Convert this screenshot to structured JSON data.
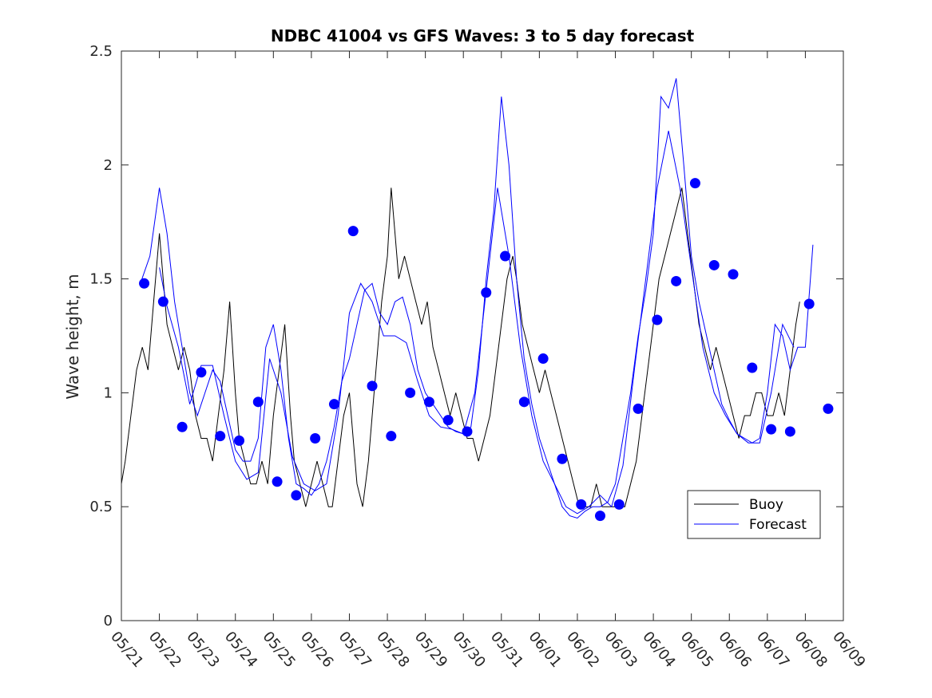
{
  "chart_data": {
    "type": "line",
    "title": "NDBC 41004 vs GFS Waves: 3 to 5 day forecast",
    "xlabel": "",
    "ylabel": "Wave height, m",
    "ylim": [
      0,
      2.5
    ],
    "xlim": [
      "05/21",
      "06/09"
    ],
    "x_tick_labels": [
      "05/21",
      "05/22",
      "05/23",
      "05/24",
      "05/25",
      "05/26",
      "05/27",
      "05/28",
      "05/29",
      "05/30",
      "05/31",
      "06/01",
      "06/02",
      "06/03",
      "06/04",
      "06/05",
      "06/06",
      "06/07",
      "06/08",
      "06/09"
    ],
    "y_tick_labels": [
      "0",
      "0.5",
      "1",
      "1.5",
      "2",
      "2.5"
    ],
    "y_ticks": [
      0,
      0.5,
      1,
      1.5,
      2,
      2.5
    ],
    "grid": false,
    "legend": {
      "placement": "lower-right",
      "entries": [
        {
          "label": "Buoy",
          "color": "#000000"
        },
        {
          "label": "Forecast",
          "color": "#0000ff"
        }
      ]
    },
    "series": [
      {
        "name": "Buoy",
        "kind": "line",
        "color": "#000000",
        "points": [
          [
            0.0,
            0.6
          ],
          [
            0.1,
            0.7
          ],
          [
            0.25,
            0.9
          ],
          [
            0.4,
            1.1
          ],
          [
            0.55,
            1.2
          ],
          [
            0.7,
            1.1
          ],
          [
            0.85,
            1.4
          ],
          [
            1.0,
            1.7
          ],
          [
            1.1,
            1.5
          ],
          [
            1.2,
            1.3
          ],
          [
            1.35,
            1.2
          ],
          [
            1.5,
            1.1
          ],
          [
            1.65,
            1.2
          ],
          [
            1.8,
            1.1
          ],
          [
            1.95,
            0.9
          ],
          [
            2.1,
            0.8
          ],
          [
            2.25,
            0.8
          ],
          [
            2.4,
            0.7
          ],
          [
            2.55,
            0.9
          ],
          [
            2.7,
            1.1
          ],
          [
            2.85,
            1.4
          ],
          [
            3.0,
            1.0
          ],
          [
            3.1,
            0.8
          ],
          [
            3.25,
            0.7
          ],
          [
            3.4,
            0.6
          ],
          [
            3.55,
            0.6
          ],
          [
            3.7,
            0.7
          ],
          [
            3.85,
            0.6
          ],
          [
            4.0,
            0.9
          ],
          [
            4.15,
            1.1
          ],
          [
            4.3,
            1.3
          ],
          [
            4.45,
            0.9
          ],
          [
            4.55,
            0.7
          ],
          [
            4.7,
            0.6
          ],
          [
            4.85,
            0.5
          ],
          [
            5.0,
            0.6
          ],
          [
            5.15,
            0.7
          ],
          [
            5.3,
            0.6
          ],
          [
            5.45,
            0.5
          ],
          [
            5.55,
            0.5
          ],
          [
            5.7,
            0.7
          ],
          [
            5.85,
            0.9
          ],
          [
            6.0,
            1.0
          ],
          [
            6.1,
            0.8
          ],
          [
            6.2,
            0.6
          ],
          [
            6.35,
            0.5
          ],
          [
            6.5,
            0.7
          ],
          [
            6.65,
            1.0
          ],
          [
            6.85,
            1.4
          ],
          [
            7.0,
            1.6
          ],
          [
            7.1,
            1.9
          ],
          [
            7.2,
            1.7
          ],
          [
            7.3,
            1.5
          ],
          [
            7.45,
            1.6
          ],
          [
            7.6,
            1.5
          ],
          [
            7.75,
            1.4
          ],
          [
            7.9,
            1.3
          ],
          [
            8.05,
            1.4
          ],
          [
            8.2,
            1.2
          ],
          [
            8.35,
            1.1
          ],
          [
            8.5,
            1.0
          ],
          [
            8.65,
            0.9
          ],
          [
            8.8,
            1.0
          ],
          [
            8.95,
            0.9
          ],
          [
            9.1,
            0.8
          ],
          [
            9.25,
            0.8
          ],
          [
            9.4,
            0.7
          ],
          [
            9.55,
            0.8
          ],
          [
            9.7,
            0.9
          ],
          [
            9.85,
            1.1
          ],
          [
            10.0,
            1.3
          ],
          [
            10.15,
            1.5
          ],
          [
            10.3,
            1.6
          ],
          [
            10.4,
            1.5
          ],
          [
            10.55,
            1.3
          ],
          [
            10.7,
            1.2
          ],
          [
            10.85,
            1.1
          ],
          [
            11.0,
            1.0
          ],
          [
            11.15,
            1.1
          ],
          [
            11.3,
            1.0
          ],
          [
            11.45,
            0.9
          ],
          [
            11.6,
            0.8
          ],
          [
            11.75,
            0.7
          ],
          [
            11.9,
            0.6
          ],
          [
            12.05,
            0.5
          ],
          [
            12.2,
            0.5
          ],
          [
            12.35,
            0.5
          ],
          [
            12.5,
            0.6
          ],
          [
            12.65,
            0.5
          ],
          [
            12.8,
            0.5
          ],
          [
            12.95,
            0.5
          ],
          [
            13.1,
            0.5
          ],
          [
            13.25,
            0.5
          ],
          [
            13.4,
            0.6
          ],
          [
            13.55,
            0.7
          ],
          [
            13.7,
            0.9
          ],
          [
            13.85,
            1.1
          ],
          [
            14.0,
            1.3
          ],
          [
            14.15,
            1.5
          ],
          [
            14.3,
            1.6
          ],
          [
            14.45,
            1.7
          ],
          [
            14.6,
            1.8
          ],
          [
            14.75,
            1.9
          ],
          [
            14.9,
            1.7
          ],
          [
            15.05,
            1.5
          ],
          [
            15.2,
            1.3
          ],
          [
            15.35,
            1.2
          ],
          [
            15.5,
            1.1
          ],
          [
            15.65,
            1.2
          ],
          [
            15.8,
            1.1
          ],
          [
            15.95,
            1.0
          ],
          [
            16.1,
            0.9
          ],
          [
            16.25,
            0.8
          ],
          [
            16.4,
            0.9
          ],
          [
            16.55,
            0.9
          ],
          [
            16.7,
            1.0
          ],
          [
            16.85,
            1.0
          ],
          [
            17.0,
            0.9
          ],
          [
            17.15,
            0.9
          ],
          [
            17.3,
            1.0
          ],
          [
            17.45,
            0.9
          ],
          [
            17.6,
            1.1
          ],
          [
            17.75,
            1.3
          ],
          [
            17.85,
            1.4
          ]
        ]
      },
      {
        "name": "Forecast",
        "kind": "line",
        "color": "#0000ff",
        "points": [
          [
            0.5,
            1.48
          ],
          [
            0.75,
            1.6
          ],
          [
            1.0,
            1.9
          ],
          [
            1.2,
            1.7
          ],
          [
            1.4,
            1.4
          ],
          [
            1.6,
            1.2
          ],
          [
            1.8,
            1.0
          ],
          [
            2.0,
            0.9
          ],
          [
            2.2,
            1.0
          ],
          [
            2.4,
            1.1
          ],
          [
            2.6,
            1.05
          ],
          [
            2.8,
            0.9
          ],
          [
            3.0,
            0.75
          ],
          [
            3.2,
            0.7
          ],
          [
            3.4,
            0.7
          ],
          [
            3.6,
            0.8
          ],
          [
            3.8,
            1.2
          ],
          [
            4.0,
            1.3
          ],
          [
            4.2,
            1.1
          ],
          [
            4.4,
            0.8
          ],
          [
            4.6,
            0.6
          ],
          [
            4.8,
            0.58
          ],
          [
            5.0,
            0.55
          ],
          [
            5.2,
            0.6
          ],
          [
            5.4,
            0.7
          ],
          [
            5.6,
            0.85
          ],
          [
            5.8,
            1.05
          ],
          [
            6.0,
            1.15
          ],
          [
            6.2,
            1.3
          ],
          [
            6.4,
            1.45
          ],
          [
            6.6,
            1.48
          ],
          [
            6.8,
            1.35
          ],
          [
            7.0,
            1.3
          ],
          [
            7.2,
            1.4
          ],
          [
            7.4,
            1.42
          ],
          [
            7.6,
            1.3
          ],
          [
            7.8,
            1.1
          ],
          [
            8.0,
            1.0
          ],
          [
            8.2,
            0.95
          ],
          [
            8.4,
            0.9
          ],
          [
            8.6,
            0.85
          ],
          [
            8.8,
            0.83
          ],
          [
            9.0,
            0.82
          ],
          [
            9.2,
            0.85
          ],
          [
            9.4,
            1.1
          ],
          [
            9.6,
            1.5
          ],
          [
            9.8,
            1.8
          ],
          [
            10.0,
            2.3
          ],
          [
            10.2,
            2.0
          ],
          [
            10.4,
            1.5
          ],
          [
            10.6,
            1.15
          ],
          [
            10.8,
            0.95
          ],
          [
            11.0,
            0.8
          ],
          [
            11.2,
            0.7
          ],
          [
            11.4,
            0.6
          ],
          [
            11.6,
            0.5
          ],
          [
            11.8,
            0.46
          ],
          [
            12.0,
            0.45
          ],
          [
            12.2,
            0.48
          ],
          [
            12.4,
            0.5
          ],
          [
            12.6,
            0.5
          ],
          [
            12.8,
            0.52
          ],
          [
            13.0,
            0.6
          ],
          [
            13.2,
            0.8
          ],
          [
            13.4,
            1.0
          ],
          [
            13.6,
            1.25
          ],
          [
            13.8,
            1.45
          ],
          [
            14.0,
            1.7
          ],
          [
            14.2,
            2.3
          ],
          [
            14.4,
            2.25
          ],
          [
            14.6,
            2.38
          ],
          [
            14.8,
            2.0
          ],
          [
            15.0,
            1.6
          ],
          [
            15.2,
            1.4
          ],
          [
            15.4,
            1.25
          ],
          [
            15.6,
            1.1
          ],
          [
            15.8,
            0.95
          ],
          [
            16.0,
            0.88
          ],
          [
            16.2,
            0.82
          ],
          [
            16.4,
            0.8
          ],
          [
            16.6,
            0.78
          ],
          [
            16.8,
            0.8
          ],
          [
            17.0,
            1.0
          ],
          [
            17.2,
            1.3
          ],
          [
            17.4,
            1.25
          ],
          [
            17.6,
            1.1
          ],
          [
            17.8,
            1.2
          ],
          [
            18.0,
            1.2
          ],
          [
            18.2,
            1.65
          ]
        ]
      },
      {
        "name": "Forecast",
        "kind": "line",
        "color": "#0000ff",
        "points": [
          [
            1.0,
            1.55
          ],
          [
            1.2,
            1.38
          ],
          [
            1.5,
            1.2
          ],
          [
            1.8,
            0.95
          ],
          [
            2.1,
            1.12
          ],
          [
            2.4,
            1.12
          ],
          [
            2.7,
            0.9
          ],
          [
            3.0,
            0.7
          ],
          [
            3.3,
            0.62
          ],
          [
            3.6,
            0.65
          ],
          [
            3.9,
            1.15
          ],
          [
            4.2,
            1.0
          ],
          [
            4.5,
            0.72
          ],
          [
            4.8,
            0.6
          ],
          [
            5.1,
            0.57
          ],
          [
            5.4,
            0.6
          ],
          [
            5.7,
            0.9
          ],
          [
            6.0,
            1.35
          ],
          [
            6.3,
            1.48
          ],
          [
            6.6,
            1.4
          ],
          [
            6.9,
            1.25
          ],
          [
            7.2,
            1.25
          ],
          [
            7.5,
            1.22
          ],
          [
            7.8,
            1.05
          ],
          [
            8.1,
            0.9
          ],
          [
            8.4,
            0.85
          ],
          [
            8.7,
            0.84
          ],
          [
            9.0,
            0.82
          ],
          [
            9.3,
            1.0
          ],
          [
            9.6,
            1.45
          ],
          [
            9.9,
            1.9
          ],
          [
            10.2,
            1.6
          ],
          [
            10.5,
            1.2
          ],
          [
            10.8,
            0.9
          ],
          [
            11.1,
            0.7
          ],
          [
            11.4,
            0.6
          ],
          [
            11.7,
            0.5
          ],
          [
            12.0,
            0.47
          ],
          [
            12.3,
            0.5
          ],
          [
            12.6,
            0.55
          ],
          [
            12.9,
            0.5
          ],
          [
            13.2,
            0.68
          ],
          [
            13.5,
            1.1
          ],
          [
            13.8,
            1.5
          ],
          [
            14.1,
            1.9
          ],
          [
            14.4,
            2.15
          ],
          [
            14.7,
            1.9
          ],
          [
            15.0,
            1.55
          ],
          [
            15.3,
            1.2
          ],
          [
            15.6,
            1.0
          ],
          [
            15.9,
            0.9
          ],
          [
            16.2,
            0.82
          ],
          [
            16.5,
            0.78
          ],
          [
            16.8,
            0.78
          ],
          [
            17.1,
            1.0
          ],
          [
            17.4,
            1.3
          ],
          [
            17.7,
            1.2
          ]
        ]
      },
      {
        "name": "Forecast",
        "kind": "scatter",
        "color": "#0000ff",
        "points": [
          [
            0.6,
            1.48
          ],
          [
            1.1,
            1.4
          ],
          [
            1.6,
            0.85
          ],
          [
            2.1,
            1.09
          ],
          [
            2.6,
            0.81
          ],
          [
            3.1,
            0.79
          ],
          [
            3.6,
            0.96
          ],
          [
            4.1,
            0.61
          ],
          [
            4.6,
            0.55
          ],
          [
            5.1,
            0.8
          ],
          [
            5.6,
            0.95
          ],
          [
            6.1,
            1.71
          ],
          [
            6.6,
            1.03
          ],
          [
            7.1,
            0.81
          ],
          [
            7.6,
            1.0
          ],
          [
            8.1,
            0.96
          ],
          [
            8.6,
            0.88
          ],
          [
            9.1,
            0.83
          ],
          [
            9.6,
            1.44
          ],
          [
            10.1,
            1.6
          ],
          [
            10.6,
            0.96
          ],
          [
            11.1,
            1.15
          ],
          [
            11.6,
            0.71
          ],
          [
            12.1,
            0.51
          ],
          [
            12.6,
            0.46
          ],
          [
            13.1,
            0.51
          ],
          [
            13.6,
            0.93
          ],
          [
            14.1,
            1.32
          ],
          [
            14.6,
            1.49
          ],
          [
            15.1,
            1.92
          ],
          [
            15.6,
            1.56
          ],
          [
            16.1,
            1.52
          ],
          [
            16.6,
            1.11
          ],
          [
            17.1,
            0.84
          ],
          [
            17.6,
            0.83
          ],
          [
            18.1,
            1.39
          ],
          [
            18.6,
            0.93
          ]
        ]
      }
    ]
  }
}
